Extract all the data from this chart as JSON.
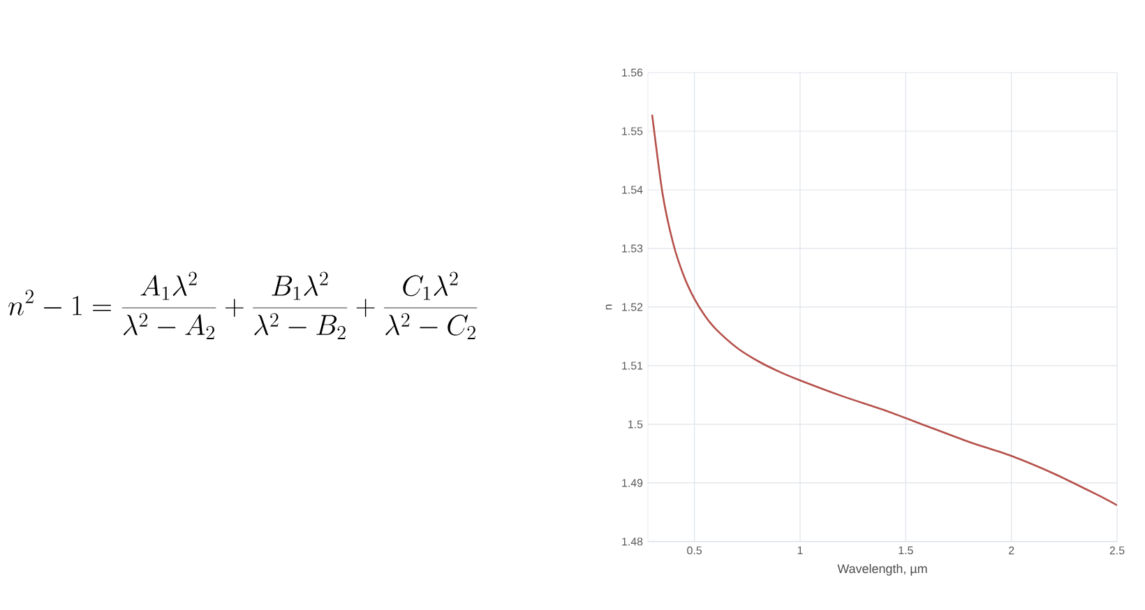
{
  "chart_data": {
    "type": "line",
    "xlabel": "Wavelength, µm",
    "ylabel": "n",
    "annotations": [
      "n^2-1=\\frac{A_1\\lambda^2}{\\lambda^2-A_2}+\\frac{B_1\\lambda^2}{\\lambda^2-B_2}+\\frac{C_1\\lambda^2}{\\lambda^2-C_2}"
    ],
    "xlim": [
      0.28,
      2.5
    ],
    "ylim": [
      1.48,
      1.56
    ],
    "xticks": [
      0.5,
      1,
      1.5,
      2,
      2.5
    ],
    "yticks": [
      1.48,
      1.49,
      1.5,
      1.51,
      1.52,
      1.53,
      1.54,
      1.55,
      1.56
    ],
    "grid": true,
    "marker": "none",
    "line_style": "solid",
    "series": [
      {
        "color": "#b5504a",
        "x": [
          0.3,
          0.35,
          0.4,
          0.45,
          0.5,
          0.55,
          0.6,
          0.7,
          0.8,
          0.9,
          1.0,
          1.2,
          1.4,
          1.6,
          1.8,
          2.0,
          2.2,
          2.4,
          2.5
        ],
        "values": [
          1.5528,
          1.5392,
          1.5308,
          1.5253,
          1.5214,
          1.5185,
          1.5163,
          1.5131,
          1.5108,
          1.509,
          1.5075,
          1.5048,
          1.5024,
          1.4997,
          1.497,
          1.4946,
          1.4916,
          1.4881,
          1.4862
        ]
      }
    ]
  }
}
